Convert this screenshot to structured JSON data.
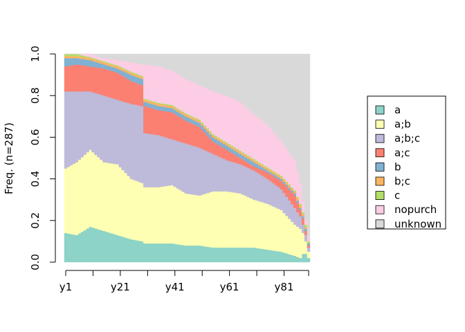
{
  "chart_data": {
    "type": "area",
    "stacked": true,
    "ylabel": "Freq. (n=287)",
    "ylim": [
      0,
      1
    ],
    "y_ticks": [
      "0.0",
      "0.2",
      "0.4",
      "0.6",
      "0.8",
      "1.0"
    ],
    "x_tick_labels": [
      "y1",
      "y21",
      "y41",
      "y61",
      "y81"
    ],
    "x_tick_positions": [
      1,
      21,
      41,
      61,
      81
    ],
    "n_positions": 90,
    "legend_placement": "right",
    "series_names": [
      "a",
      "a;b",
      "a;b;c",
      "a;c",
      "b",
      "b;c",
      "c",
      "nopurch",
      "unknown"
    ],
    "colors": [
      "#8DD3C7",
      "#FFFFB3",
      "#BEBADA",
      "#FB8072",
      "#80B1D3",
      "#FDB462",
      "#B3DE69",
      "#FCCDE5",
      "#D9D9D9"
    ],
    "cumulative_boundaries": [
      {
        "x": 1,
        "levels": [
          0.14,
          0.45,
          0.82,
          0.94,
          0.98,
          0.99,
          1.0,
          1.0
        ]
      },
      {
        "x": 5,
        "levels": [
          0.13,
          0.48,
          0.82,
          0.95,
          0.98,
          0.99,
          1.0,
          1.0
        ]
      },
      {
        "x": 10,
        "levels": [
          0.17,
          0.54,
          0.82,
          0.94,
          0.97,
          0.98,
          0.985,
          1.0
        ]
      },
      {
        "x": 15,
        "levels": [
          0.15,
          0.48,
          0.8,
          0.93,
          0.95,
          0.96,
          0.965,
          0.98
        ]
      },
      {
        "x": 20,
        "levels": [
          0.13,
          0.47,
          0.78,
          0.91,
          0.93,
          0.94,
          0.945,
          0.97
        ]
      },
      {
        "x": 25,
        "levels": [
          0.11,
          0.4,
          0.76,
          0.87,
          0.9,
          0.91,
          0.915,
          0.96
        ]
      },
      {
        "x": 29,
        "levels": [
          0.1,
          0.38,
          0.75,
          0.85,
          0.88,
          0.89,
          0.895,
          0.95
        ]
      },
      {
        "x": 30,
        "levels": [
          0.09,
          0.36,
          0.62,
          0.75,
          0.77,
          0.78,
          0.785,
          0.95
        ]
      },
      {
        "x": 35,
        "levels": [
          0.09,
          0.36,
          0.61,
          0.73,
          0.75,
          0.76,
          0.765,
          0.94
        ]
      },
      {
        "x": 40,
        "levels": [
          0.09,
          0.37,
          0.59,
          0.72,
          0.74,
          0.75,
          0.755,
          0.92
        ]
      },
      {
        "x": 45,
        "levels": [
          0.08,
          0.33,
          0.57,
          0.68,
          0.7,
          0.71,
          0.715,
          0.88
        ]
      },
      {
        "x": 50,
        "levels": [
          0.08,
          0.32,
          0.55,
          0.65,
          0.67,
          0.68,
          0.685,
          0.85
        ]
      },
      {
        "x": 55,
        "levels": [
          0.07,
          0.34,
          0.52,
          0.58,
          0.6,
          0.61,
          0.615,
          0.82
        ]
      },
      {
        "x": 60,
        "levels": [
          0.07,
          0.34,
          0.49,
          0.54,
          0.56,
          0.57,
          0.575,
          0.8
        ]
      },
      {
        "x": 65,
        "levels": [
          0.07,
          0.33,
          0.47,
          0.5,
          0.52,
          0.53,
          0.535,
          0.77
        ]
      },
      {
        "x": 70,
        "levels": [
          0.07,
          0.3,
          0.44,
          0.46,
          0.48,
          0.49,
          0.495,
          0.71
        ]
      },
      {
        "x": 75,
        "levels": [
          0.06,
          0.28,
          0.4,
          0.43,
          0.44,
          0.45,
          0.455,
          0.66
        ]
      },
      {
        "x": 80,
        "levels": [
          0.05,
          0.25,
          0.35,
          0.39,
          0.4,
          0.41,
          0.415,
          0.58
        ]
      },
      {
        "x": 85,
        "levels": [
          0.03,
          0.18,
          0.26,
          0.32,
          0.33,
          0.34,
          0.345,
          0.49
        ]
      },
      {
        "x": 87,
        "levels": [
          0.02,
          0.16,
          0.22,
          0.25,
          0.26,
          0.27,
          0.28,
          0.38
        ]
      },
      {
        "x": 88,
        "levels": [
          0.04,
          0.14,
          0.18,
          0.21,
          0.22,
          0.23,
          0.24,
          0.3
        ]
      },
      {
        "x": 89,
        "levels": [
          0.04,
          0.1,
          0.13,
          0.15,
          0.16,
          0.17,
          0.18,
          0.2
        ]
      },
      {
        "x": 90,
        "levels": [
          0.02,
          0.05,
          0.07,
          0.08,
          0.09,
          0.09,
          0.1,
          0.12
        ]
      }
    ]
  }
}
